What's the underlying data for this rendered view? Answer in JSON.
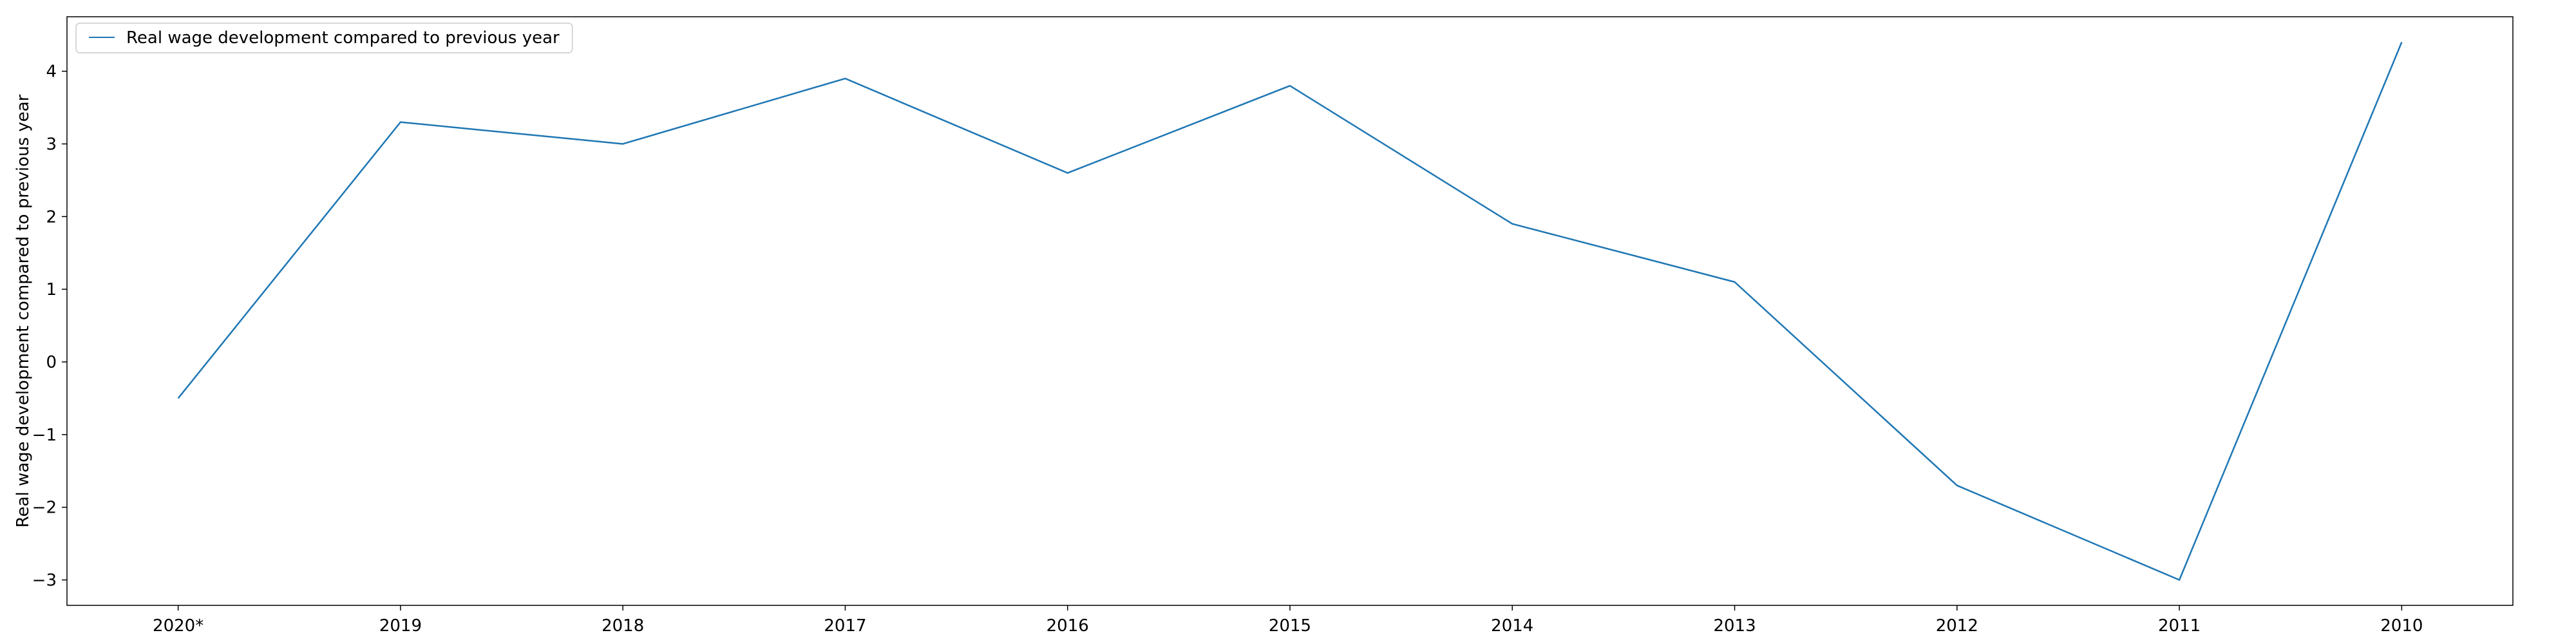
{
  "chart_data": {
    "type": "line",
    "categories": [
      "2020*",
      "2019",
      "2018",
      "2017",
      "2016",
      "2015",
      "2014",
      "2013",
      "2012",
      "2011",
      "2010"
    ],
    "series": [
      {
        "name": "Real wage development compared to previous year",
        "values": [
          -0.5,
          3.3,
          3.0,
          3.9,
          2.6,
          3.8,
          1.9,
          1.1,
          -1.7,
          -3.0,
          4.4
        ],
        "color": "#1f77b4"
      }
    ],
    "title": "",
    "xlabel": "",
    "ylabel": "Real wage development compared to previous year",
    "ylim": [
      -3.35,
      4.75
    ],
    "yticks": [
      -3,
      -2,
      -1,
      0,
      1,
      2,
      3,
      4
    ],
    "ytick_labels": [
      "−3",
      "−2",
      "−1",
      "0",
      "1",
      "2",
      "3",
      "4"
    ],
    "grid": false,
    "legend_position": "top-left"
  }
}
